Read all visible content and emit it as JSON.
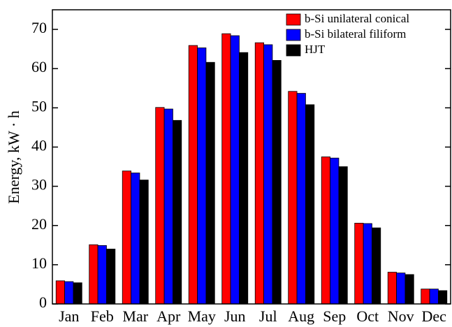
{
  "chart_data": {
    "type": "bar",
    "y_label": "Energy, kW · h",
    "categories": [
      "Jan",
      "Feb",
      "Mar",
      "Apr",
      "May",
      "Jun",
      "Jul",
      "Aug",
      "Sep",
      "Oct",
      "Nov",
      "Dec"
    ],
    "series": [
      {
        "name": "b-Si unilateral conical",
        "color": "#ff0000",
        "values": [
          5.9,
          15.1,
          33.9,
          50.1,
          65.9,
          68.9,
          66.6,
          54.2,
          37.5,
          20.6,
          8.1,
          3.8
        ]
      },
      {
        "name": "b-Si bilateral filiform",
        "color": "#0000ff",
        "values": [
          5.7,
          14.9,
          33.4,
          49.7,
          65.3,
          68.4,
          66.1,
          53.7,
          37.2,
          20.5,
          7.9,
          3.8
        ]
      },
      {
        "name": "HJT",
        "color": "#000000",
        "values": [
          5.4,
          14.0,
          31.6,
          46.8,
          61.6,
          64.1,
          62.1,
          50.8,
          35.0,
          19.4,
          7.5,
          3.4
        ]
      }
    ],
    "ylim": [
      0,
      75
    ],
    "yticks": [
      0,
      10,
      20,
      30,
      40,
      50,
      60,
      70
    ],
    "legend": "top-right"
  }
}
